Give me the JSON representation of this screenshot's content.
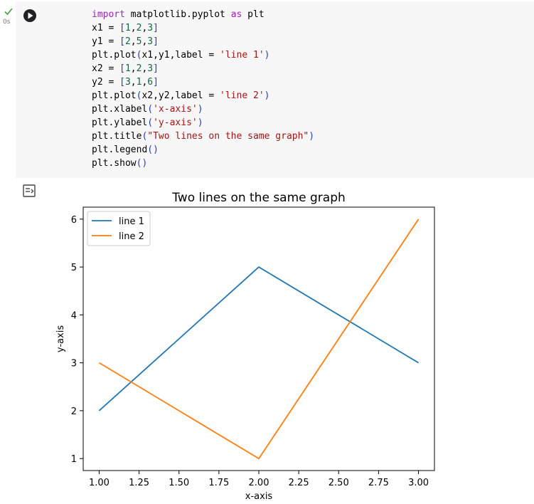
{
  "cell": {
    "status_icon": "check-icon",
    "runtime": "0s",
    "run_icon": "play-icon",
    "code_lines": [
      [
        {
          "t": "import",
          "c": "kw"
        },
        {
          "t": " matplotlib.pyplot "
        },
        {
          "t": "as",
          "c": "kw"
        },
        {
          "t": " plt"
        }
      ],
      [
        {
          "t": "x1 = "
        },
        {
          "t": "[",
          "c": "paren"
        },
        {
          "t": "1",
          "c": "num"
        },
        {
          "t": ","
        },
        {
          "t": "2",
          "c": "num"
        },
        {
          "t": ","
        },
        {
          "t": "3",
          "c": "num"
        },
        {
          "t": "]",
          "c": "paren"
        }
      ],
      [
        {
          "t": "y1 = "
        },
        {
          "t": "[",
          "c": "paren"
        },
        {
          "t": "2",
          "c": "num"
        },
        {
          "t": ","
        },
        {
          "t": "5",
          "c": "num"
        },
        {
          "t": ","
        },
        {
          "t": "3",
          "c": "num"
        },
        {
          "t": "]",
          "c": "paren"
        }
      ],
      [
        {
          "t": "plt.plot"
        },
        {
          "t": "(",
          "c": "paren"
        },
        {
          "t": "x1,y1,label = "
        },
        {
          "t": "'line 1'",
          "c": "str"
        },
        {
          "t": ")",
          "c": "paren"
        }
      ],
      [
        {
          "t": "x2 = "
        },
        {
          "t": "[",
          "c": "paren"
        },
        {
          "t": "1",
          "c": "num"
        },
        {
          "t": ","
        },
        {
          "t": "2",
          "c": "num"
        },
        {
          "t": ","
        },
        {
          "t": "3",
          "c": "num"
        },
        {
          "t": "]",
          "c": "paren"
        }
      ],
      [
        {
          "t": "y2 = "
        },
        {
          "t": "[",
          "c": "paren"
        },
        {
          "t": "3",
          "c": "num"
        },
        {
          "t": ","
        },
        {
          "t": "1",
          "c": "num"
        },
        {
          "t": ","
        },
        {
          "t": "6",
          "c": "num"
        },
        {
          "t": "]",
          "c": "paren"
        }
      ],
      [
        {
          "t": "plt.plot"
        },
        {
          "t": "(",
          "c": "paren"
        },
        {
          "t": "x2,y2,label = "
        },
        {
          "t": "'line 2'",
          "c": "str"
        },
        {
          "t": ")",
          "c": "paren"
        }
      ],
      [
        {
          "t": "plt.xlabel"
        },
        {
          "t": "(",
          "c": "paren"
        },
        {
          "t": "'x-axis'",
          "c": "str"
        },
        {
          "t": ")",
          "c": "paren"
        }
      ],
      [
        {
          "t": "plt.ylabel"
        },
        {
          "t": "(",
          "c": "paren"
        },
        {
          "t": "'y-axis'",
          "c": "str"
        },
        {
          "t": ")",
          "c": "paren"
        }
      ],
      [
        {
          "t": "plt.title"
        },
        {
          "t": "(",
          "c": "paren"
        },
        {
          "t": "\"Two lines on the same graph\"",
          "c": "str"
        },
        {
          "t": ")",
          "c": "paren"
        }
      ],
      [
        {
          "t": "plt.legend"
        },
        {
          "t": "()",
          "c": "paren"
        }
      ],
      [
        {
          "t": "plt.show"
        },
        {
          "t": "()",
          "c": "paren"
        }
      ]
    ]
  },
  "output": {
    "toggle_icon": "output-toggle-icon"
  },
  "colors": {
    "line1": "#1f77b4",
    "line2": "#ff7f0e",
    "check": "#43a047"
  },
  "chart_data": {
    "type": "line",
    "title": "Two lines on the same graph",
    "xlabel": "x-axis",
    "ylabel": "y-axis",
    "xlim": [
      0.9,
      3.1
    ],
    "ylim": [
      0.75,
      6.25
    ],
    "xticks": [
      "1.00",
      "1.25",
      "1.50",
      "1.75",
      "2.00",
      "2.25",
      "2.50",
      "2.75",
      "3.00"
    ],
    "yticks": [
      "1",
      "2",
      "3",
      "4",
      "5",
      "6"
    ],
    "legend_position": "top-left",
    "grid": false,
    "series": [
      {
        "name": "line 1",
        "x": [
          1,
          2,
          3
        ],
        "y": [
          2,
          5,
          3
        ]
      },
      {
        "name": "line 2",
        "x": [
          1,
          2,
          3
        ],
        "y": [
          3,
          1,
          6
        ]
      }
    ]
  }
}
